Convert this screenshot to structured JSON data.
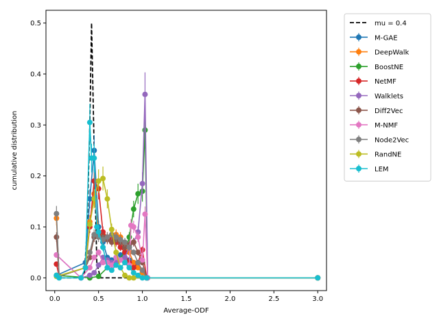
{
  "chart_data": {
    "type": "line",
    "xlabel": "Average-ODF",
    "ylabel": "cumulative distribution",
    "xlim": [
      -0.1,
      3.1
    ],
    "ylim": [
      -0.025,
      0.525
    ],
    "xticks": [
      "0.0",
      "0.5",
      "1.0",
      "1.5",
      "2.0",
      "2.5",
      "3.0"
    ],
    "yticks": [
      "0.0",
      "0.1",
      "0.2",
      "0.3",
      "0.4",
      "0.5"
    ],
    "legend_position": "outside-right",
    "reference": {
      "name": "mu = 0.4",
      "color": "#000000",
      "style": "dashed",
      "x": [
        0,
        0.3,
        0.34,
        0.37,
        0.4,
        0.42,
        0.45,
        0.48,
        0.52,
        3.0
      ],
      "y": [
        0,
        0,
        0.01,
        0.1,
        0.3,
        0.5,
        0.25,
        0.03,
        0,
        0
      ]
    },
    "series": [
      {
        "name": "M-GAE",
        "color": "#1f77b4",
        "x": [
          0.02,
          0.35,
          0.4,
          0.45,
          0.5,
          0.55,
          0.6,
          0.65,
          0.7,
          0.75,
          0.8,
          0.85,
          0.9,
          1.0,
          1.05,
          3.0
        ],
        "y": [
          0.005,
          0.03,
          0.155,
          0.25,
          0.1,
          0.07,
          0.04,
          0.035,
          0.04,
          0.045,
          0.04,
          0.035,
          0.03,
          0.01,
          0.0,
          0.0
        ]
      },
      {
        "name": "DeepWalk",
        "color": "#ff7f0e",
        "x": [
          0.02,
          0.05,
          0.35,
          0.4,
          0.45,
          0.5,
          0.55,
          0.6,
          0.65,
          0.7,
          0.75,
          0.8,
          0.85,
          0.9,
          0.95,
          1.0,
          1.05,
          3.0
        ],
        "y": [
          0.117,
          0.003,
          0.02,
          0.11,
          0.165,
          0.09,
          0.085,
          0.08,
          0.075,
          0.085,
          0.08,
          0.06,
          0.05,
          0.03,
          0.02,
          0.01,
          0.0,
          0.0
        ]
      },
      {
        "name": "BoostNE",
        "color": "#2ca02c",
        "x": [
          0.02,
          0.4,
          0.5,
          0.6,
          0.7,
          0.8,
          0.85,
          0.9,
          0.95,
          1.0,
          1.03,
          1.06,
          3.0
        ],
        "y": [
          0.005,
          0.0,
          0.003,
          0.02,
          0.03,
          0.05,
          0.08,
          0.135,
          0.165,
          0.17,
          0.29,
          0.0,
          0.0
        ]
      },
      {
        "name": "NetMF",
        "color": "#d62728",
        "x": [
          0.02,
          0.05,
          0.35,
          0.4,
          0.45,
          0.5,
          0.55,
          0.6,
          0.65,
          0.7,
          0.75,
          0.8,
          0.85,
          0.9,
          0.95,
          1.0,
          1.05,
          3.0
        ],
        "y": [
          0.027,
          0.003,
          0.02,
          0.1,
          0.19,
          0.175,
          0.09,
          0.08,
          0.075,
          0.07,
          0.06,
          0.05,
          0.03,
          0.02,
          0.03,
          0.055,
          0.0,
          0.0
        ]
      },
      {
        "name": "Walklets",
        "color": "#9467bd",
        "x": [
          0.02,
          0.3,
          0.4,
          0.45,
          0.5,
          0.55,
          0.6,
          0.65,
          0.7,
          0.75,
          0.8,
          0.85,
          0.9,
          0.95,
          1.0,
          1.03,
          1.06,
          3.0
        ],
        "y": [
          0.045,
          0.0,
          0.005,
          0.01,
          0.025,
          0.04,
          0.035,
          0.03,
          0.03,
          0.035,
          0.04,
          0.06,
          0.07,
          0.09,
          0.185,
          0.36,
          0.0,
          0.0
        ]
      },
      {
        "name": "Diff2Vec",
        "color": "#8c564b",
        "x": [
          0.02,
          0.05,
          0.35,
          0.4,
          0.45,
          0.5,
          0.55,
          0.6,
          0.65,
          0.7,
          0.75,
          0.8,
          0.85,
          0.9,
          0.95,
          1.0,
          1.05,
          3.0
        ],
        "y": [
          0.08,
          0.003,
          0.02,
          0.04,
          0.08,
          0.085,
          0.08,
          0.075,
          0.07,
          0.075,
          0.07,
          0.06,
          0.065,
          0.07,
          0.05,
          0.03,
          0.0,
          0.0
        ]
      },
      {
        "name": "M-NMF",
        "color": "#e377c2",
        "x": [
          0.02,
          0.3,
          0.4,
          0.45,
          0.5,
          0.55,
          0.6,
          0.65,
          0.7,
          0.75,
          0.8,
          0.85,
          0.87,
          0.9,
          0.95,
          1.0,
          1.03,
          1.06,
          3.0
        ],
        "y": [
          0.045,
          0.0,
          0.02,
          0.04,
          0.05,
          0.03,
          0.03,
          0.025,
          0.04,
          0.035,
          0.03,
          0.025,
          0.103,
          0.1,
          0.08,
          0.035,
          0.125,
          0.0,
          0.0
        ]
      },
      {
        "name": "Node2Vec",
        "color": "#7f7f7f",
        "x": [
          0.02,
          0.05,
          0.35,
          0.4,
          0.45,
          0.5,
          0.55,
          0.6,
          0.65,
          0.7,
          0.75,
          0.8,
          0.85,
          0.9,
          0.95,
          1.0,
          1.05,
          3.0
        ],
        "y": [
          0.126,
          0.003,
          0.02,
          0.05,
          0.085,
          0.08,
          0.075,
          0.08,
          0.085,
          0.08,
          0.075,
          0.07,
          0.06,
          0.05,
          0.03,
          0.015,
          0.0,
          0.0
        ]
      },
      {
        "name": "RandNE",
        "color": "#bcbd22",
        "x": [
          0.02,
          0.35,
          0.4,
          0.45,
          0.5,
          0.55,
          0.6,
          0.65,
          0.7,
          0.75,
          0.8,
          0.85,
          0.9,
          3.0
        ],
        "y": [
          0.003,
          0.02,
          0.105,
          0.155,
          0.19,
          0.195,
          0.155,
          0.095,
          0.05,
          0.02,
          0.005,
          0.0,
          0.0,
          0.0
        ]
      },
      {
        "name": "LEM",
        "color": "#17becf",
        "x": [
          0.02,
          0.05,
          0.3,
          0.35,
          0.4,
          0.42,
          0.45,
          0.48,
          0.5,
          0.55,
          0.6,
          0.65,
          0.7,
          0.75,
          0.8,
          0.85,
          0.9,
          0.95,
          1.0,
          1.05,
          3.0
        ],
        "y": [
          0.005,
          0.0,
          0.0,
          0.02,
          0.305,
          0.235,
          0.235,
          0.1,
          0.09,
          0.06,
          0.02,
          0.015,
          0.025,
          0.02,
          0.03,
          0.02,
          0.01,
          0.005,
          0.0,
          0.0,
          0.0
        ]
      }
    ]
  }
}
